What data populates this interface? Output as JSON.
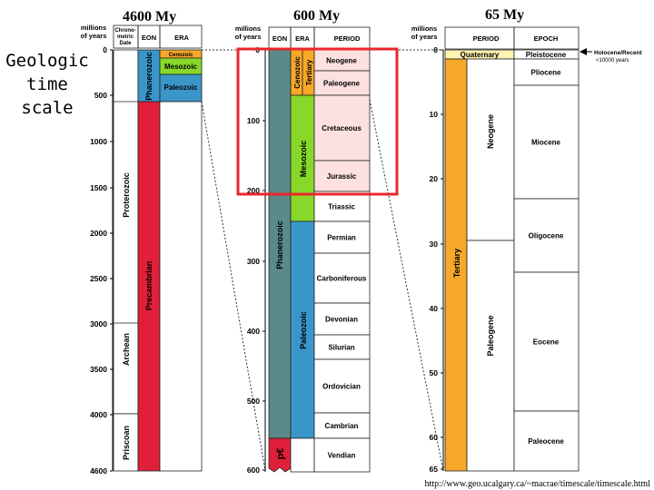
{
  "headers": {
    "h1": "4600 My",
    "h2": "600 My",
    "h3": "65 My"
  },
  "side_label": {
    "line1": "Geologic",
    "line2": "time",
    "line3": "scale"
  },
  "common": {
    "millions": "millions",
    "of_years": "of years",
    "eon": "EON",
    "era": "ERA",
    "period": "PERIOD",
    "epoch": "EPOCH"
  },
  "panel1": {
    "chrono": "Chrono-",
    "metric": "metric",
    "date": "Date",
    "ticks": [
      "0",
      "500",
      "1000",
      "1500",
      "2000",
      "2500",
      "3000",
      "3500",
      "4000",
      "4600"
    ],
    "eras": [
      "Cenozoic",
      "Mesozoic",
      "Paleozoic"
    ],
    "eons": [
      "Phanerozoic",
      "Proterozoic",
      "Archean",
      "Priscoan"
    ],
    "precambrian": "Precambrian"
  },
  "panel2": {
    "ticks": [
      "0",
      "100",
      "200",
      "300",
      "400",
      "500",
      "600"
    ],
    "eon_phanerozoic": "Phanerozoic",
    "eon_pc": "p€",
    "era_cenozoic": "Cenozoic",
    "era_mesozoic": "Mesozoic",
    "era_paleozoic": "Paleozoic",
    "tertiary": "Tertiary",
    "periods": [
      "Neogene",
      "Paleogene",
      "Cretaceous",
      "Jurassic",
      "Triassic",
      "Permian",
      "Carboniferous",
      "Devonian",
      "Silurian",
      "Ordovician",
      "Cambrian",
      "Vendian"
    ]
  },
  "panel3": {
    "ticks": [
      "0",
      "10",
      "20",
      "30",
      "40",
      "50",
      "60",
      "65"
    ],
    "quaternary": "Quaternary",
    "tertiary": "Tertiary",
    "neogene": "Neogene",
    "paleogene": "Paleogene",
    "epochs": [
      "Pleistocene",
      "Pliocene",
      "Miocene",
      "Oligocene",
      "Eocene",
      "Paleocene"
    ],
    "holocene1": "Holocene/Recent",
    "holocene2": "<10000 years"
  },
  "url": "http://www.geo.ucalgary.ca/~macrae/timescale/timescale.html",
  "colors": {
    "red": "#e0203a",
    "teal": "#5a8a8a",
    "blue": "#3a96c9",
    "green": "#88d82a",
    "orange": "#f7a828",
    "pink": "#fde0e0",
    "highlight": "#e8272c"
  }
}
